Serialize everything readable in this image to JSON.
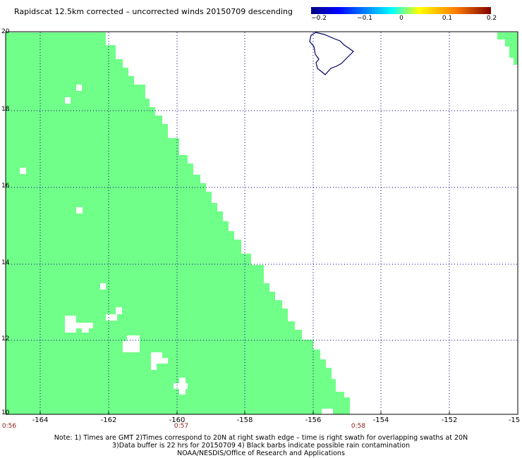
{
  "title": "Rapidscat 12.5km corrected – uncorrected winds 20150709 descending",
  "colorbar": {
    "labels": [
      "−0.2",
      "−0.1",
      "0",
      "0.1",
      "0.2"
    ],
    "colors": [
      "#000080",
      "#0000ff",
      "#00ffff",
      "#ffff00",
      "#ff8000",
      "#800000"
    ]
  },
  "map": {
    "lon_range": [
      -165,
      -150
    ],
    "lat_range": [
      10,
      20
    ],
    "swath_color": "#70ff88",
    "coast_color": "#000066",
    "lon_labels": [
      "-164",
      "-162",
      "-160",
      "-158",
      "-156",
      "-154",
      "-152",
      "-15"
    ],
    "lat_labels": [
      "20",
      "18",
      "16",
      "14",
      "12",
      "10"
    ]
  },
  "times": [
    "0:56",
    "0:57",
    "0:58"
  ],
  "notes": {
    "line1": "Note: 1) Times are GMT 2)Times correspond to 20N at right swath edge – time is right swath for overlapping swaths at 20N",
    "line2": "3)Data buffer is 22 hrs for 20150709 4) Black barbs indicate possible rain contamination",
    "line3": "NOAA/NESDIS/Office of Research and Applications"
  }
}
